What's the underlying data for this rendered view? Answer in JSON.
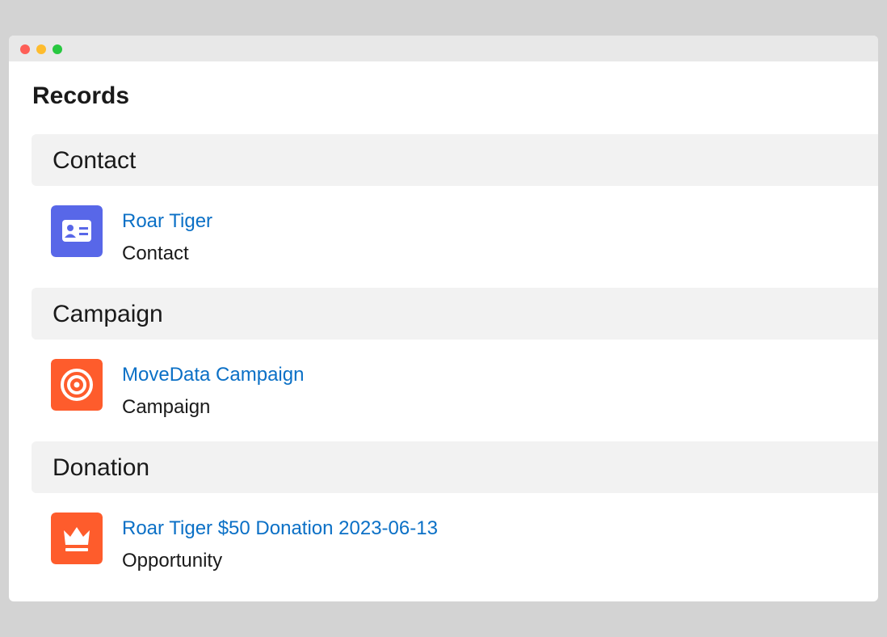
{
  "header": {
    "title": "Records"
  },
  "sections": [
    {
      "title": "Contact",
      "items": [
        {
          "name": "Roar Tiger",
          "type": "Contact"
        }
      ]
    },
    {
      "title": "Campaign",
      "items": [
        {
          "name": "MoveData Campaign",
          "type": "Campaign"
        }
      ]
    },
    {
      "title": "Donation",
      "items": [
        {
          "name": "Roar Tiger $50 Donation 2023-06-13",
          "type": "Opportunity"
        }
      ]
    }
  ]
}
